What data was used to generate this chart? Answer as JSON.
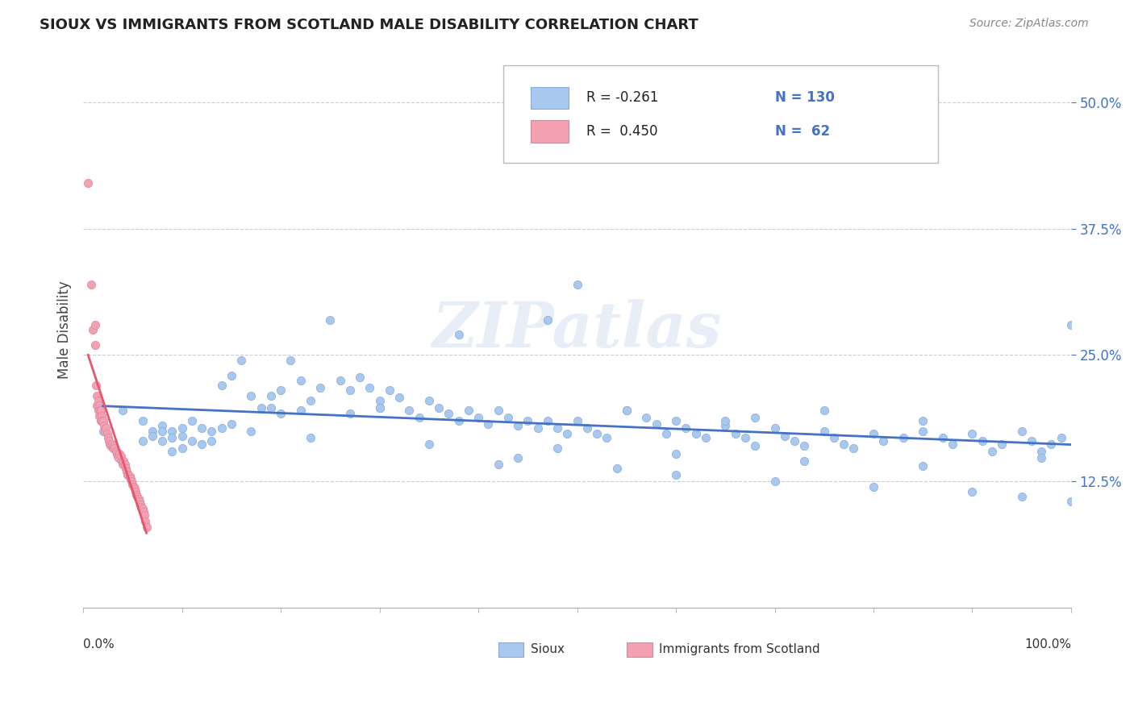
{
  "title": "SIOUX VS IMMIGRANTS FROM SCOTLAND MALE DISABILITY CORRELATION CHART",
  "source": "Source: ZipAtlas.com",
  "ylabel": "Male Disability",
  "ytick_values": [
    0.125,
    0.25,
    0.375,
    0.5
  ],
  "xlim": [
    0.0,
    1.0
  ],
  "ylim": [
    0.0,
    0.55
  ],
  "legend_r_sioux": "-0.261",
  "legend_n_sioux": "130",
  "legend_r_scotland": "0.450",
  "legend_n_scotland": "62",
  "sioux_color": "#a8c8f0",
  "scotland_color": "#f4a0b0",
  "sioux_line_color": "#4472c4",
  "scotland_line_color": "#e8546a",
  "background_color": "#ffffff",
  "sioux_x": [
    0.02,
    0.04,
    0.06,
    0.06,
    0.07,
    0.07,
    0.08,
    0.08,
    0.08,
    0.09,
    0.09,
    0.09,
    0.1,
    0.1,
    0.1,
    0.11,
    0.11,
    0.12,
    0.12,
    0.13,
    0.13,
    0.14,
    0.14,
    0.15,
    0.15,
    0.16,
    0.17,
    0.18,
    0.19,
    0.2,
    0.2,
    0.21,
    0.22,
    0.23,
    0.24,
    0.25,
    0.26,
    0.27,
    0.28,
    0.29,
    0.3,
    0.3,
    0.31,
    0.32,
    0.33,
    0.34,
    0.35,
    0.36,
    0.37,
    0.38,
    0.39,
    0.4,
    0.41,
    0.42,
    0.43,
    0.44,
    0.45,
    0.46,
    0.47,
    0.48,
    0.49,
    0.5,
    0.51,
    0.52,
    0.53,
    0.55,
    0.57,
    0.58,
    0.59,
    0.6,
    0.61,
    0.62,
    0.63,
    0.65,
    0.66,
    0.67,
    0.68,
    0.7,
    0.71,
    0.72,
    0.73,
    0.75,
    0.76,
    0.77,
    0.78,
    0.8,
    0.81,
    0.83,
    0.85,
    0.87,
    0.88,
    0.9,
    0.91,
    0.93,
    0.95,
    0.96,
    0.97,
    0.98,
    0.99,
    1.0,
    0.5,
    0.47,
    0.38,
    0.19,
    0.3,
    0.27,
    0.22,
    0.55,
    0.65,
    0.68,
    0.75,
    0.85,
    0.92,
    0.97,
    0.42,
    0.44,
    0.54,
    0.6,
    0.7,
    0.8,
    0.9,
    0.95,
    1.0,
    0.17,
    0.23,
    0.35,
    0.48,
    0.6,
    0.73,
    0.85
  ],
  "sioux_y": [
    0.175,
    0.195,
    0.185,
    0.165,
    0.175,
    0.17,
    0.18,
    0.175,
    0.165,
    0.175,
    0.168,
    0.155,
    0.178,
    0.17,
    0.158,
    0.185,
    0.165,
    0.178,
    0.162,
    0.175,
    0.165,
    0.22,
    0.178,
    0.23,
    0.182,
    0.245,
    0.21,
    0.198,
    0.21,
    0.215,
    0.192,
    0.245,
    0.225,
    0.205,
    0.218,
    0.285,
    0.225,
    0.215,
    0.228,
    0.218,
    0.205,
    0.198,
    0.215,
    0.208,
    0.195,
    0.188,
    0.205,
    0.198,
    0.192,
    0.185,
    0.195,
    0.188,
    0.182,
    0.195,
    0.188,
    0.18,
    0.185,
    0.178,
    0.185,
    0.178,
    0.172,
    0.185,
    0.178,
    0.172,
    0.168,
    0.195,
    0.188,
    0.182,
    0.172,
    0.185,
    0.178,
    0.172,
    0.168,
    0.18,
    0.172,
    0.168,
    0.16,
    0.178,
    0.17,
    0.165,
    0.16,
    0.175,
    0.168,
    0.162,
    0.158,
    0.172,
    0.165,
    0.168,
    0.175,
    0.168,
    0.162,
    0.172,
    0.165,
    0.162,
    0.175,
    0.165,
    0.155,
    0.162,
    0.168,
    0.28,
    0.32,
    0.285,
    0.27,
    0.198,
    0.198,
    0.192,
    0.195,
    0.195,
    0.185,
    0.188,
    0.195,
    0.185,
    0.155,
    0.148,
    0.142,
    0.148,
    0.138,
    0.132,
    0.125,
    0.12,
    0.115,
    0.11,
    0.105,
    0.175,
    0.168,
    0.162,
    0.158,
    0.152,
    0.145,
    0.14
  ],
  "scotland_x": [
    0.005,
    0.008,
    0.01,
    0.012,
    0.012,
    0.013,
    0.014,
    0.014,
    0.015,
    0.015,
    0.016,
    0.016,
    0.017,
    0.018,
    0.018,
    0.019,
    0.019,
    0.02,
    0.021,
    0.022,
    0.023,
    0.024,
    0.025,
    0.026,
    0.027,
    0.028,
    0.029,
    0.03,
    0.031,
    0.032,
    0.033,
    0.034,
    0.035,
    0.036,
    0.037,
    0.038,
    0.039,
    0.04,
    0.041,
    0.042,
    0.043,
    0.044,
    0.045,
    0.046,
    0.047,
    0.048,
    0.049,
    0.05,
    0.051,
    0.052,
    0.053,
    0.054,
    0.055,
    0.056,
    0.057,
    0.058,
    0.059,
    0.06,
    0.061,
    0.062,
    0.063,
    0.064
  ],
  "scotland_y": [
    0.42,
    0.32,
    0.275,
    0.28,
    0.26,
    0.22,
    0.2,
    0.21,
    0.195,
    0.205,
    0.19,
    0.2,
    0.195,
    0.195,
    0.185,
    0.19,
    0.185,
    0.185,
    0.18,
    0.175,
    0.178,
    0.172,
    0.168,
    0.165,
    0.162,
    0.16,
    0.162,
    0.158,
    0.16,
    0.158,
    0.155,
    0.152,
    0.15,
    0.148,
    0.152,
    0.15,
    0.145,
    0.142,
    0.145,
    0.142,
    0.138,
    0.135,
    0.132,
    0.132,
    0.13,
    0.128,
    0.125,
    0.122,
    0.12,
    0.118,
    0.115,
    0.112,
    0.11,
    0.108,
    0.105,
    0.102,
    0.1,
    0.098,
    0.095,
    0.092,
    0.085,
    0.08
  ]
}
